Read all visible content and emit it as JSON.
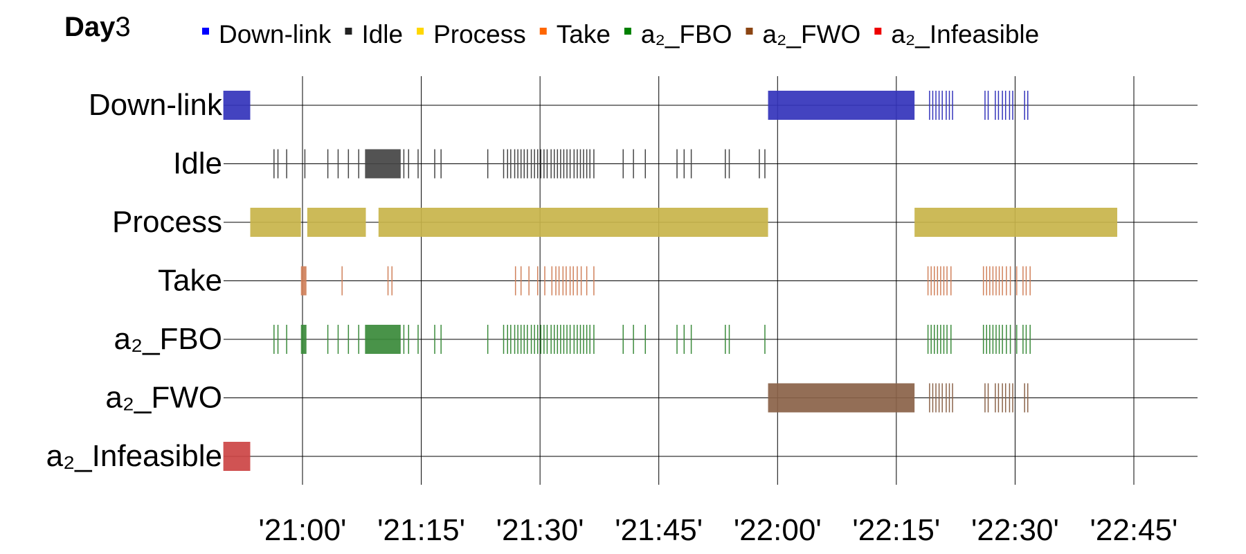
{
  "chart_data": {
    "type": "timeline",
    "title_bold": "Day",
    "title_rest": "3",
    "xlabel": "",
    "ylabel": "",
    "x_unit": "minutes since 20:40",
    "xlim": [
      0,
      123
    ],
    "x_ticks": [
      {
        "value": 20,
        "label": "'21:00'"
      },
      {
        "value": 35,
        "label": "'21:15'"
      },
      {
        "value": 50,
        "label": "'21:30'"
      },
      {
        "value": 65,
        "label": "'21:45'"
      },
      {
        "value": 80,
        "label": "'22:00'"
      },
      {
        "value": 95,
        "label": "'22:15'"
      },
      {
        "value": 110,
        "label": "'22:30'"
      },
      {
        "value": 125,
        "label": "'22:45'"
      }
    ],
    "grid": true,
    "legend": "top",
    "series": [
      {
        "name": "Down-link",
        "label": "Down-link",
        "color": "#3333bb",
        "legend_color": "#0000ff",
        "intervals": [
          [
            10.0,
            13.4
          ],
          [
            78.8,
            97.3
          ]
        ],
        "ticks": [
          99.2,
          99.6,
          100.0,
          100.4,
          100.8,
          101.3,
          101.7,
          102.1,
          106.2,
          106.6,
          107.5,
          107.9,
          108.4,
          108.8,
          109.3,
          109.7,
          111.2,
          111.6
        ]
      },
      {
        "name": "Idle",
        "label": "Idle",
        "color": "#444444",
        "legend_color": "#222222",
        "intervals": [
          [
            27.9,
            32.4
          ]
        ],
        "ticks": [
          16.4,
          16.9,
          18.0,
          20.3,
          23.2,
          24.5,
          25.8,
          27.1,
          32.8,
          33.4,
          34.6,
          36.7,
          37.5,
          43.4,
          45.4,
          45.9,
          46.3,
          46.8,
          47.2,
          47.6,
          48.0,
          48.4,
          48.9,
          49.3,
          49.7,
          50.1,
          50.5,
          50.9,
          51.4,
          51.8,
          52.2,
          52.6,
          53.0,
          53.4,
          53.8,
          54.3,
          54.7,
          55.1,
          55.5,
          55.9,
          56.3,
          56.8,
          60.5,
          61.8,
          63.3,
          67.3,
          68.2,
          69.1,
          73.4,
          73.9,
          77.7,
          78.4
        ]
      },
      {
        "name": "Process",
        "label": "Process",
        "color": "#c8b44a",
        "legend_color": "#ffd700",
        "intervals": [
          [
            13.4,
            19.8
          ],
          [
            20.6,
            28.0
          ],
          [
            29.6,
            78.8
          ],
          [
            97.3,
            122.9
          ]
        ],
        "ticks": []
      },
      {
        "name": "Take",
        "label": "Take",
        "color": "#d0805a",
        "legend_color": "#ff6600",
        "intervals": [
          [
            19.8,
            20.5
          ]
        ],
        "ticks": [
          25.0,
          30.8,
          31.3,
          46.9,
          47.6,
          48.6,
          49.7,
          50.6,
          51.5,
          52.0,
          52.4,
          52.9,
          53.3,
          53.8,
          54.2,
          54.7,
          55.2,
          55.9,
          56.8,
          99.0,
          99.4,
          99.8,
          100.2,
          100.6,
          101.0,
          101.4,
          101.9,
          106.0,
          106.4,
          106.8,
          107.2,
          107.6,
          108.0,
          108.4,
          108.9,
          109.4,
          110.2,
          111.0,
          111.4,
          111.9
        ]
      },
      {
        "name": "a2_FBO",
        "label": "a₂_FBO",
        "color": "#3a8a3a",
        "legend_color": "#008000",
        "intervals": [
          [
            19.8,
            20.5
          ],
          [
            27.9,
            32.4
          ]
        ],
        "ticks": [
          16.4,
          16.9,
          18.0,
          23.2,
          24.5,
          25.8,
          27.1,
          32.8,
          33.4,
          34.6,
          36.7,
          37.5,
          43.4,
          45.4,
          45.9,
          46.3,
          46.8,
          47.2,
          47.6,
          48.0,
          48.4,
          48.9,
          49.3,
          49.7,
          50.1,
          50.5,
          50.9,
          51.4,
          51.8,
          52.2,
          52.6,
          53.0,
          53.4,
          53.8,
          54.3,
          54.7,
          55.1,
          55.5,
          55.9,
          56.3,
          56.8,
          60.5,
          61.8,
          63.3,
          67.3,
          68.2,
          69.1,
          73.4,
          73.9,
          78.4,
          99.0,
          99.4,
          99.8,
          100.2,
          100.6,
          101.0,
          101.4,
          101.9,
          106.0,
          106.4,
          106.8,
          107.2,
          107.6,
          108.0,
          108.4,
          108.9,
          109.4,
          110.2,
          111.0,
          111.4,
          111.9
        ]
      },
      {
        "name": "a2_FWO",
        "label": "a₂_FWO",
        "color": "#8a6248",
        "legend_color": "#8b4513",
        "intervals": [
          [
            78.8,
            97.3
          ]
        ],
        "ticks": [
          99.2,
          99.6,
          100.0,
          100.4,
          100.8,
          101.3,
          101.7,
          102.1,
          106.2,
          106.6,
          107.5,
          107.9,
          108.4,
          108.8,
          109.3,
          109.7,
          111.2,
          111.6
        ]
      },
      {
        "name": "a2_Infeasible",
        "label": "a₂_Infeasible",
        "color": "#cc4444",
        "legend_color": "#ee0000",
        "intervals": [
          [
            10.0,
            13.4
          ]
        ],
        "ticks": []
      }
    ]
  }
}
